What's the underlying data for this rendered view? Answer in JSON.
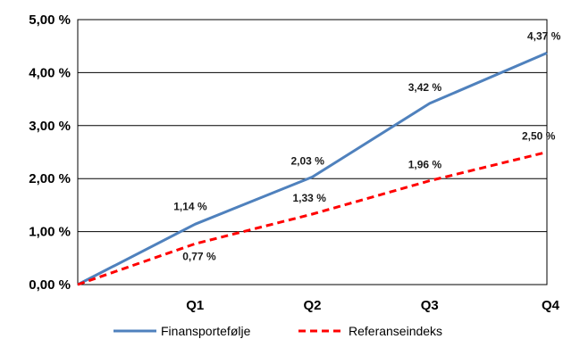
{
  "chart_data": {
    "type": "line",
    "categories": [
      "",
      "Q1",
      "Q2",
      "Q3",
      "Q4"
    ],
    "ylim": [
      0,
      5
    ],
    "yticks": [
      0,
      1,
      2,
      3,
      4,
      5
    ],
    "ytick_labels": [
      "0,00 %",
      "1,00 %",
      "2,00 %",
      "3,00 %",
      "4,00 %",
      "5,00 %"
    ],
    "grid": true,
    "legend_position": "bottom",
    "series": [
      {
        "name": "Finansportefølje",
        "color": "#4f81bd",
        "dash": "solid",
        "values": [
          0,
          1.14,
          2.03,
          3.42,
          4.37
        ],
        "labels": [
          "",
          "1,14 %",
          "2,03 %",
          "3,42 %",
          "4,37 %"
        ]
      },
      {
        "name": "Referanseindeks",
        "color": "#ff0000",
        "dash": "dashed",
        "values": [
          0,
          0.77,
          1.33,
          1.96,
          2.5
        ],
        "labels": [
          "",
          "0,77 %",
          "1,33 %",
          "1,96 %",
          "2,50 %"
        ]
      }
    ]
  }
}
